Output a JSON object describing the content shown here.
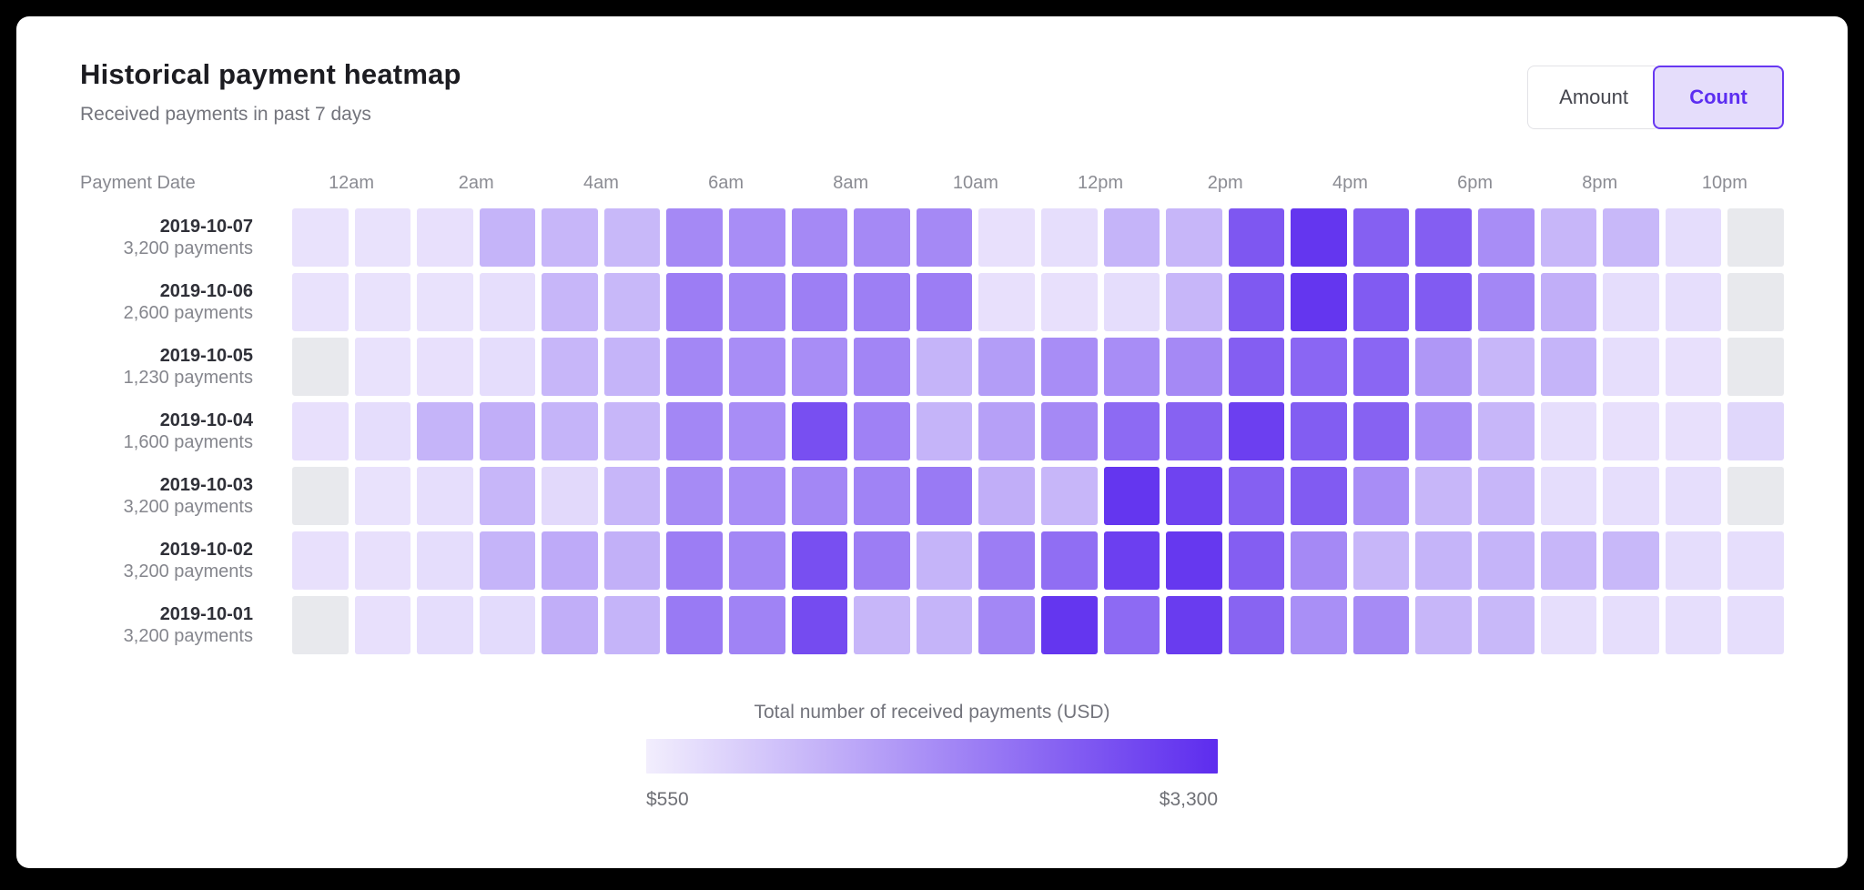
{
  "header": {
    "title": "Historical payment heatmap",
    "subtitle": "Received payments in past 7 days"
  },
  "toggle": {
    "amount_label": "Amount",
    "count_label": "Count",
    "selected": "Count"
  },
  "legend": {
    "title": "Total number of received payments (USD)",
    "min_label": "$550",
    "max_label": "$3,300"
  },
  "colors": {
    "accent_purple": "#5c2ef1",
    "accent_border": "#6737f1",
    "accent_fill": "#e5ddfb",
    "scale_light": "#f2eefd",
    "scale_dark": "#5d2cee",
    "empty_cell": "#e8e9ed"
  },
  "chart_data": {
    "type": "heatmap",
    "title": "Historical payment heatmap",
    "subtitle": "Received payments in past 7 days",
    "row_header_label": "Payment Date",
    "hour_labels": [
      "12am",
      "2am",
      "4am",
      "6am",
      "8am",
      "10am",
      "12pm",
      "2pm",
      "4pm",
      "6pm",
      "8pm",
      "10pm"
    ],
    "columns_per_day": 24,
    "rows": [
      {
        "date": "2019-10-07",
        "payments": "3,200 payments"
      },
      {
        "date": "2019-10-06",
        "payments": "2,600 payments"
      },
      {
        "date": "2019-10-05",
        "payments": "1,230 payments"
      },
      {
        "date": "2019-10-04",
        "payments": "1,600 payments"
      },
      {
        "date": "2019-10-03",
        "payments": "3,200 payments"
      },
      {
        "date": "2019-10-02",
        "payments": "3,200 payments"
      },
      {
        "date": "2019-10-01",
        "payments": "3,200 payments"
      }
    ],
    "value_scale_note": "relative intensity 0-1 mapped from $550 (light) to $3,300 (dark); null = no data (gray)",
    "values": [
      [
        0.06,
        0.06,
        0.07,
        0.3,
        0.29,
        0.28,
        0.52,
        0.5,
        0.52,
        0.52,
        0.52,
        0.07,
        0.08,
        0.3,
        0.29,
        0.78,
        0.95,
        0.73,
        0.74,
        0.5,
        0.29,
        0.28,
        0.09,
        null
      ],
      [
        0.06,
        0.06,
        0.06,
        0.08,
        0.29,
        0.28,
        0.58,
        0.53,
        0.57,
        0.57,
        0.58,
        0.07,
        0.07,
        0.09,
        0.29,
        0.77,
        0.95,
        0.76,
        0.76,
        0.53,
        0.33,
        0.09,
        0.08,
        null
      ],
      [
        null,
        0.06,
        0.07,
        0.09,
        0.29,
        0.3,
        0.53,
        0.5,
        0.5,
        0.54,
        0.3,
        0.42,
        0.5,
        0.5,
        0.52,
        0.74,
        0.7,
        0.7,
        0.45,
        0.29,
        0.3,
        0.08,
        0.07,
        null
      ],
      [
        0.07,
        0.09,
        0.3,
        0.33,
        0.3,
        0.29,
        0.53,
        0.5,
        0.82,
        0.56,
        0.3,
        0.4,
        0.52,
        0.68,
        0.72,
        0.9,
        0.75,
        0.72,
        0.5,
        0.29,
        0.08,
        0.07,
        0.07,
        0.12
      ],
      [
        null,
        0.06,
        0.08,
        0.29,
        0.11,
        0.29,
        0.51,
        0.5,
        0.53,
        0.55,
        0.6,
        0.33,
        0.29,
        0.95,
        0.88,
        0.73,
        0.76,
        0.5,
        0.29,
        0.29,
        0.09,
        0.08,
        0.08,
        null
      ],
      [
        0.07,
        0.07,
        0.09,
        0.3,
        0.35,
        0.32,
        0.58,
        0.53,
        0.82,
        0.58,
        0.3,
        0.58,
        0.66,
        0.9,
        0.94,
        0.74,
        0.52,
        0.29,
        0.3,
        0.3,
        0.29,
        0.28,
        0.09,
        0.08
      ],
      [
        null,
        0.07,
        0.09,
        0.1,
        0.33,
        0.3,
        0.6,
        0.55,
        0.84,
        0.29,
        0.3,
        0.53,
        0.95,
        0.68,
        0.92,
        0.71,
        0.49,
        0.51,
        0.29,
        0.28,
        0.08,
        0.08,
        0.08,
        0.08
      ]
    ],
    "legend": {
      "title": "Total number of received payments (USD)",
      "min_label": "$550",
      "max_label": "$3,300",
      "position": "bottom-center"
    }
  }
}
